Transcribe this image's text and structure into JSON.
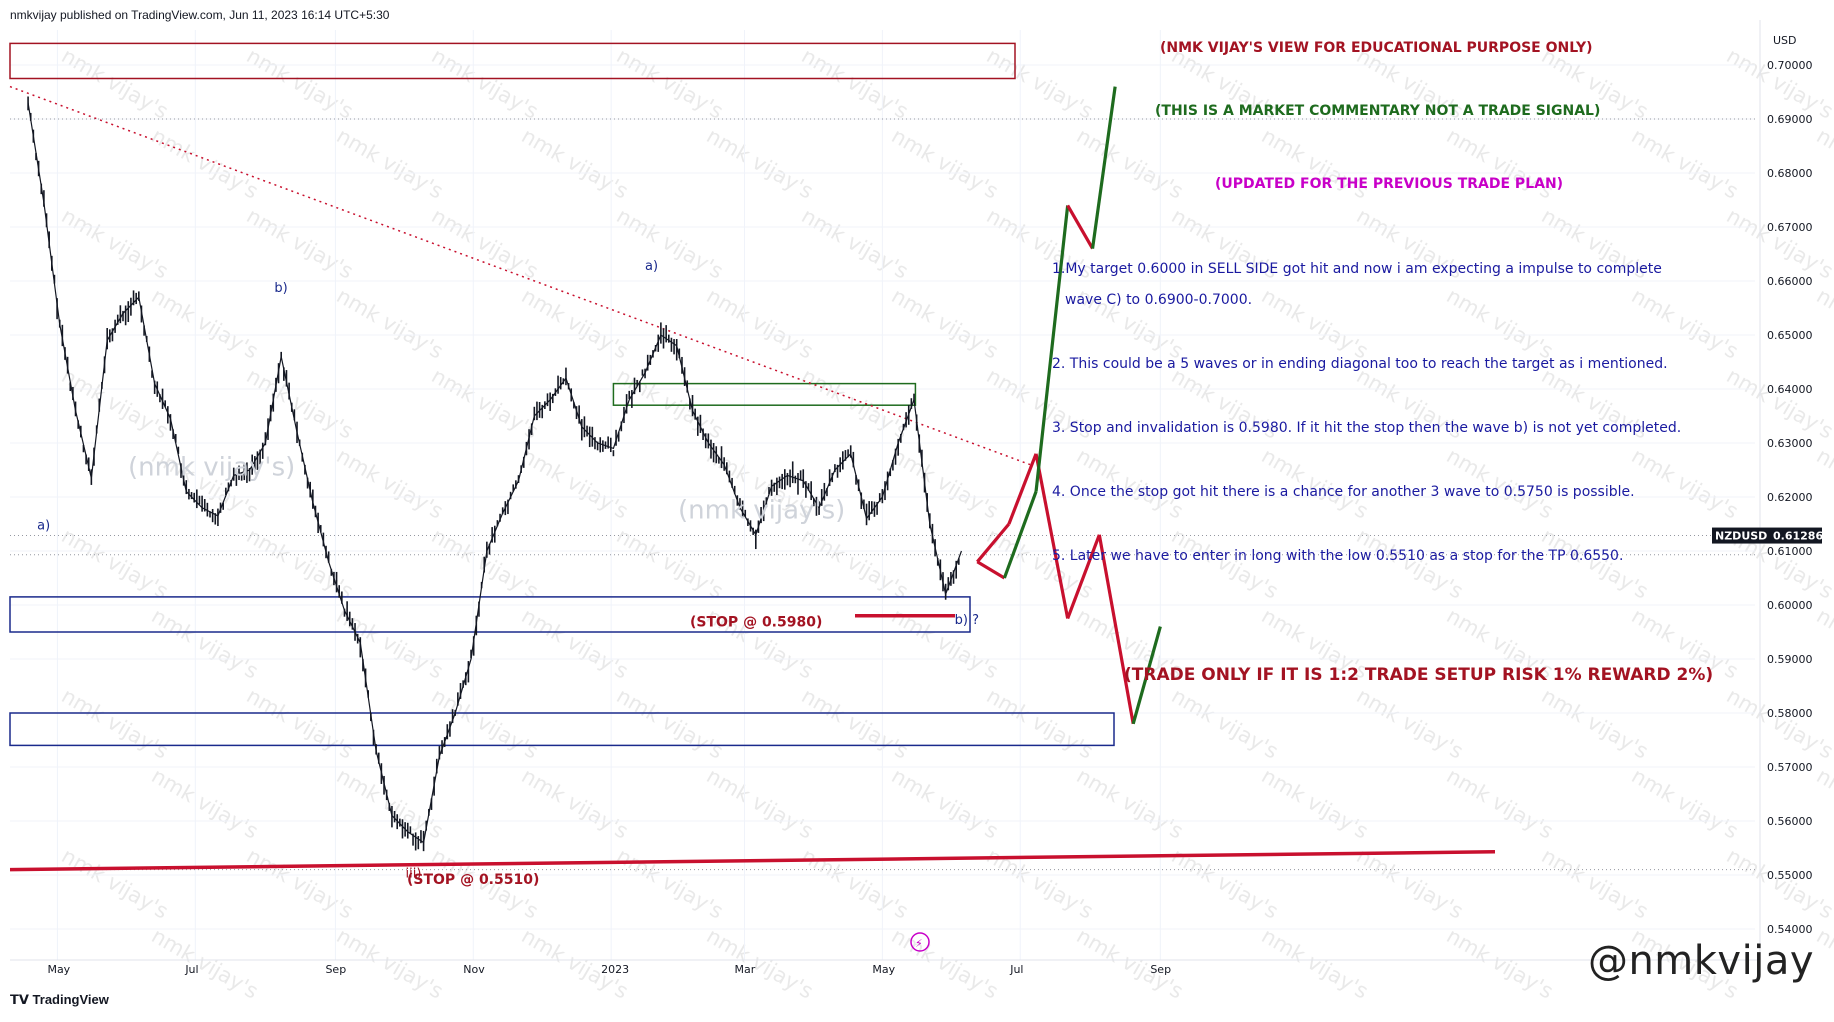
{
  "header": {
    "published_line": "nmkvijay published on TradingView.com, Jun 11, 2023 16:14 UTC+5:30",
    "currency": "USD"
  },
  "footer": {
    "brand": "TradingView",
    "watermark": "@nmkvijay"
  },
  "symbol": {
    "name": "NZDUSD",
    "last_price": "0.61286"
  },
  "colors": {
    "candle": "#131722",
    "red": "#c8102e",
    "dark_red": "#a31322",
    "green": "#1e6b1e",
    "navy": "#1a2a8c",
    "purple": "#c800c8",
    "text_blue": "#1a1aa0"
  },
  "chart_data": {
    "type": "line",
    "title": "",
    "xlabel": "",
    "ylabel": "",
    "y_axis_currency": "USD",
    "ylim": [
      0.5385,
      0.7035
    ],
    "x_tick_labels": [
      "May",
      "Jul",
      "Sep",
      "Nov",
      "2023",
      "Mar",
      "May",
      "Jul",
      "Sep"
    ],
    "y_tick_labels": [
      "0.70000",
      "0.69000",
      "0.68000",
      "0.67000",
      "0.66000",
      "0.65000",
      "0.64000",
      "0.63000",
      "0.62000",
      "0.61000",
      "0.60000",
      "0.59000",
      "0.58000",
      "0.57000",
      "0.56000",
      "0.55000",
      "0.54000"
    ],
    "grid": true,
    "series": [
      {
        "name": "NZDUSD",
        "x": [
          "2022-04-18",
          "2022-04-25",
          "2022-05-02",
          "2022-05-09",
          "2022-05-16",
          "2022-05-23",
          "2022-05-30",
          "2022-06-06",
          "2022-06-13",
          "2022-06-20",
          "2022-06-27",
          "2022-07-04",
          "2022-07-11",
          "2022-07-18",
          "2022-07-25",
          "2022-08-01",
          "2022-08-08",
          "2022-08-15",
          "2022-08-22",
          "2022-08-29",
          "2022-09-05",
          "2022-09-12",
          "2022-09-19",
          "2022-09-26",
          "2022-10-03",
          "2022-10-10",
          "2022-10-17",
          "2022-10-24",
          "2022-10-31",
          "2022-11-07",
          "2022-11-14",
          "2022-11-21",
          "2022-11-28",
          "2022-12-05",
          "2022-12-12",
          "2022-12-19",
          "2022-12-26",
          "2023-01-02",
          "2023-01-09",
          "2023-01-16",
          "2023-01-23",
          "2023-01-30",
          "2023-02-06",
          "2023-02-13",
          "2023-02-20",
          "2023-02-27",
          "2023-03-06",
          "2023-03-13",
          "2023-03-20",
          "2023-03-27",
          "2023-04-03",
          "2023-04-10",
          "2023-04-17",
          "2023-04-24",
          "2023-05-01",
          "2023-05-08",
          "2023-05-15",
          "2023-05-22",
          "2023-05-29",
          "2023-06-05"
        ],
        "values": [
          0.693,
          0.6745,
          0.652,
          0.636,
          0.6235,
          0.649,
          0.654,
          0.657,
          0.641,
          0.6345,
          0.621,
          0.618,
          0.6165,
          0.624,
          0.625,
          0.63,
          0.646,
          0.632,
          0.619,
          0.608,
          0.599,
          0.593,
          0.573,
          0.561,
          0.558,
          0.556,
          0.572,
          0.58,
          0.59,
          0.61,
          0.617,
          0.623,
          0.635,
          0.638,
          0.642,
          0.633,
          0.63,
          0.629,
          0.638,
          0.643,
          0.65,
          0.648,
          0.636,
          0.63,
          0.626,
          0.618,
          0.613,
          0.622,
          0.624,
          0.623,
          0.618,
          0.625,
          0.628,
          0.616,
          0.62,
          0.63,
          0.638,
          0.615,
          0.602,
          0.61
        ]
      }
    ],
    "wave_labels": [
      "a)",
      "b)",
      "iii)",
      "a)",
      "b) ?"
    ],
    "zones": {
      "top_box": "",
      "resistance_box": "",
      "support_box_1": "",
      "support_box_2": ""
    },
    "stop_labels": [
      "(STOP @ 0.5980)",
      "(STOP @ 0.5510)"
    ],
    "projection_path": [
      {
        "x": "2023-06-12",
        "y": 0.608
      },
      {
        "x": "2023-06-26",
        "y": 0.615
      },
      {
        "x": "2023-07-08",
        "y": 0.628
      },
      {
        "x": "2023-07-22",
        "y": 0.5975
      },
      {
        "x": "2023-08-05",
        "y": 0.613
      },
      {
        "x": "2023-08-20",
        "y": 0.578
      },
      {
        "x": "2023-09-01",
        "y": 0.596
      }
    ],
    "alt_projection_path": [
      {
        "x": "2023-06-12",
        "y": 0.608
      },
      {
        "x": "2023-06-24",
        "y": 0.605
      },
      {
        "x": "2023-07-08",
        "y": 0.621
      },
      {
        "x": "2023-07-22",
        "y": 0.674
      },
      {
        "x": "2023-08-02",
        "y": 0.666
      },
      {
        "x": "2023-08-12",
        "y": 0.696
      }
    ]
  },
  "annotations": {
    "title1": "(NMK VIJAY'S VIEW FOR EDUCATIONAL PURPOSE ONLY)",
    "title2": "(THIS IS A MARKET COMMENTARY NOT A TRADE SIGNAL)",
    "title3": "(UPDATED FOR THE PREVIOUS TRADE PLAN)",
    "point1_line1": "1.My target 0.6000 in SELL SIDE got hit and now i am expecting a impulse to complete",
    "point1_line2": "wave C) to 0.6900-0.7000.",
    "point2": "2. This could be a 5 waves or in ending diagonal too to reach the target as i mentioned.",
    "point3": "3. Stop and invalidation is 0.5980. If it hit the stop then the wave b) is not yet completed.",
    "point4": "4. Once the stop got hit there is a chance for another 3 wave to 0.5750 is possible.",
    "point5": "5. Later we have to enter in long with the low 0.5510 as a stop for the TP 0.6550.",
    "trade_rule": "(TRADE ONLY IF IT IS 1:2 TRADE SETUP RISK 1% REWARD 2%)",
    "wm_small": "nmk vijay's",
    "wm_big": "(nmk vijay's)"
  }
}
